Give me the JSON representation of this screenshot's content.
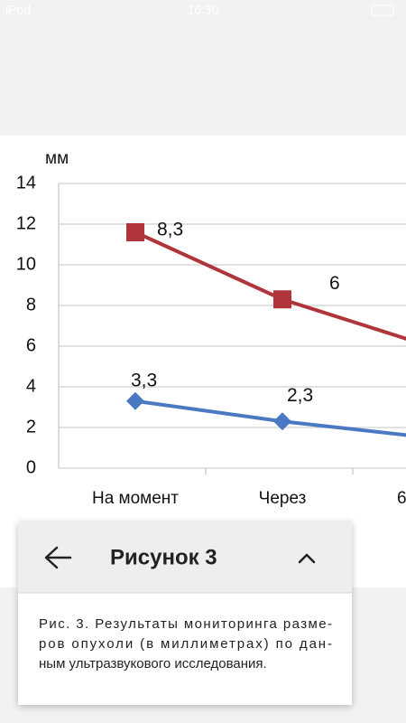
{
  "status_bar": {
    "carrier": "iPod",
    "time": "16:30"
  },
  "chart_data": {
    "type": "line",
    "stacked": true,
    "y_label": "мм",
    "categories": [
      "На момент",
      "Через",
      "6"
    ],
    "series": [
      {
        "color": "#4a78c2",
        "marker": "diamond",
        "values": [
          3.3,
          2.3,
          1.5
        ],
        "value_labels": [
          "3,3",
          "2,3",
          null
        ]
      },
      {
        "color": "#b0353a",
        "marker": "square",
        "values": [
          8.3,
          6,
          4.5
        ],
        "value_labels": [
          "8,3",
          "6",
          null
        ]
      }
    ],
    "ylim": [
      0,
      14
    ],
    "yticks": [
      0,
      2,
      4,
      6,
      8,
      10,
      12,
      14
    ],
    "grid": true
  },
  "panel": {
    "title": "Рисунок 3",
    "caption": [
      "Рис. 3. Результаты мониторинга разме-",
      "ров опухоли (в миллиметрах) по дан-",
      "ным ультразвукового исследования."
    ]
  }
}
